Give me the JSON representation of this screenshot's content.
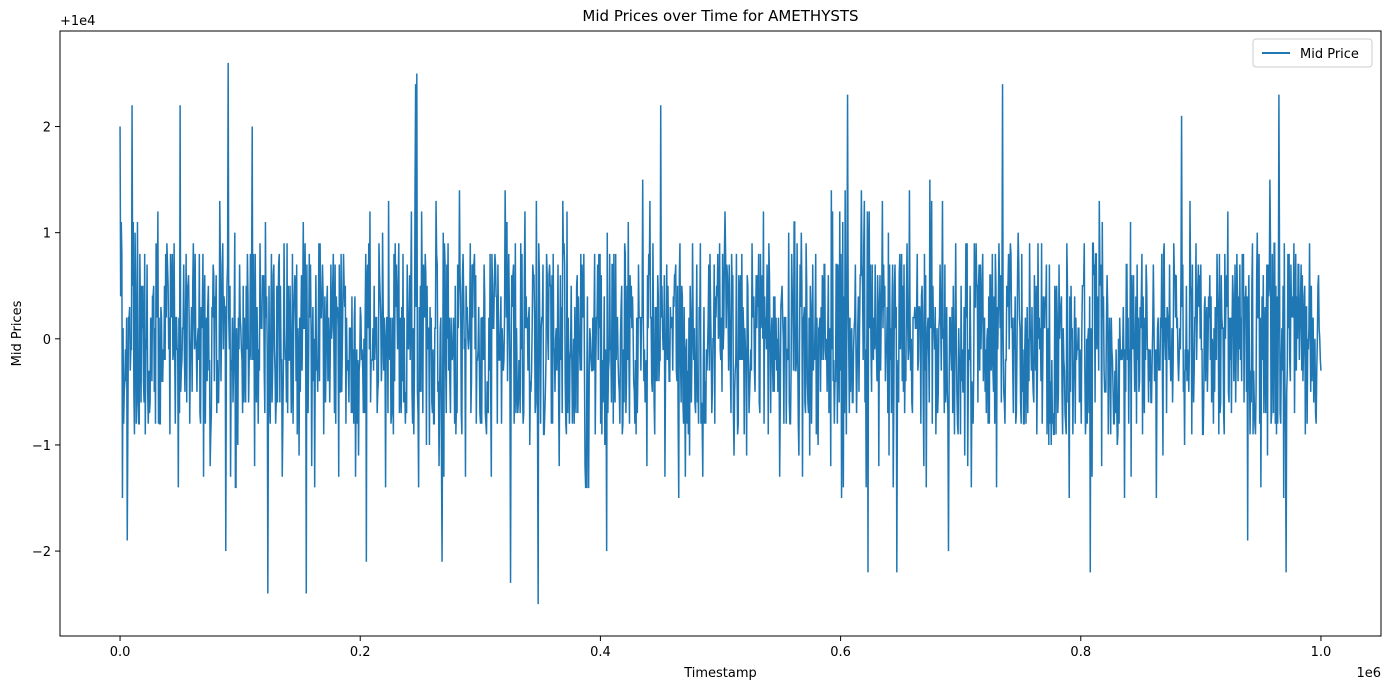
{
  "chart_data": {
    "type": "line",
    "title": "Mid Prices over Time for AMETHYSTS",
    "xlabel": "Timestamp",
    "ylabel": "Mid Prices",
    "x_offset_label": "1e6",
    "y_offset_label": "+1e4",
    "xlim": [
      -50000,
      1050000
    ],
    "ylim": [
      -28,
      29
    ],
    "x_ticks": [
      0,
      200000,
      400000,
      600000,
      800000,
      1000000
    ],
    "x_tick_labels": [
      "0.0",
      "0.2",
      "0.4",
      "0.6",
      "0.8",
      "1.0"
    ],
    "y_ticks": [
      -20,
      -10,
      0,
      10,
      20
    ],
    "y_tick_labels": [
      "−2",
      "−1",
      "0",
      "1",
      "2"
    ],
    "grid": false,
    "legend_position": "top-right",
    "series": [
      {
        "name": "Mid Price",
        "color": "#1f77b4",
        "x_start": 0,
        "x_end": 1000000,
        "baseline": 0,
        "typical_range": [
          -15,
          15
        ],
        "extremes": [
          {
            "x": 0,
            "y": 20
          },
          {
            "x": 2000,
            "y": -15
          },
          {
            "x": 10000,
            "y": 22
          },
          {
            "x": 6000,
            "y": -19
          },
          {
            "x": 50000,
            "y": 22
          },
          {
            "x": 90000,
            "y": 26
          },
          {
            "x": 88000,
            "y": -20
          },
          {
            "x": 110000,
            "y": 20
          },
          {
            "x": 123000,
            "y": -24
          },
          {
            "x": 155000,
            "y": -24
          },
          {
            "x": 205000,
            "y": -21
          },
          {
            "x": 247000,
            "y": 25
          },
          {
            "x": 246000,
            "y": 24
          },
          {
            "x": 268000,
            "y": -21
          },
          {
            "x": 325000,
            "y": -23
          },
          {
            "x": 348000,
            "y": -25
          },
          {
            "x": 405000,
            "y": -20
          },
          {
            "x": 450000,
            "y": 22
          },
          {
            "x": 606000,
            "y": 23
          },
          {
            "x": 623000,
            "y": -22
          },
          {
            "x": 647000,
            "y": -22
          },
          {
            "x": 690000,
            "y": -20
          },
          {
            "x": 735000,
            "y": 24
          },
          {
            "x": 808000,
            "y": -22
          },
          {
            "x": 884000,
            "y": 21
          },
          {
            "x": 939000,
            "y": -19
          },
          {
            "x": 965000,
            "y": 23
          },
          {
            "x": 971000,
            "y": -22
          }
        ]
      }
    ]
  }
}
